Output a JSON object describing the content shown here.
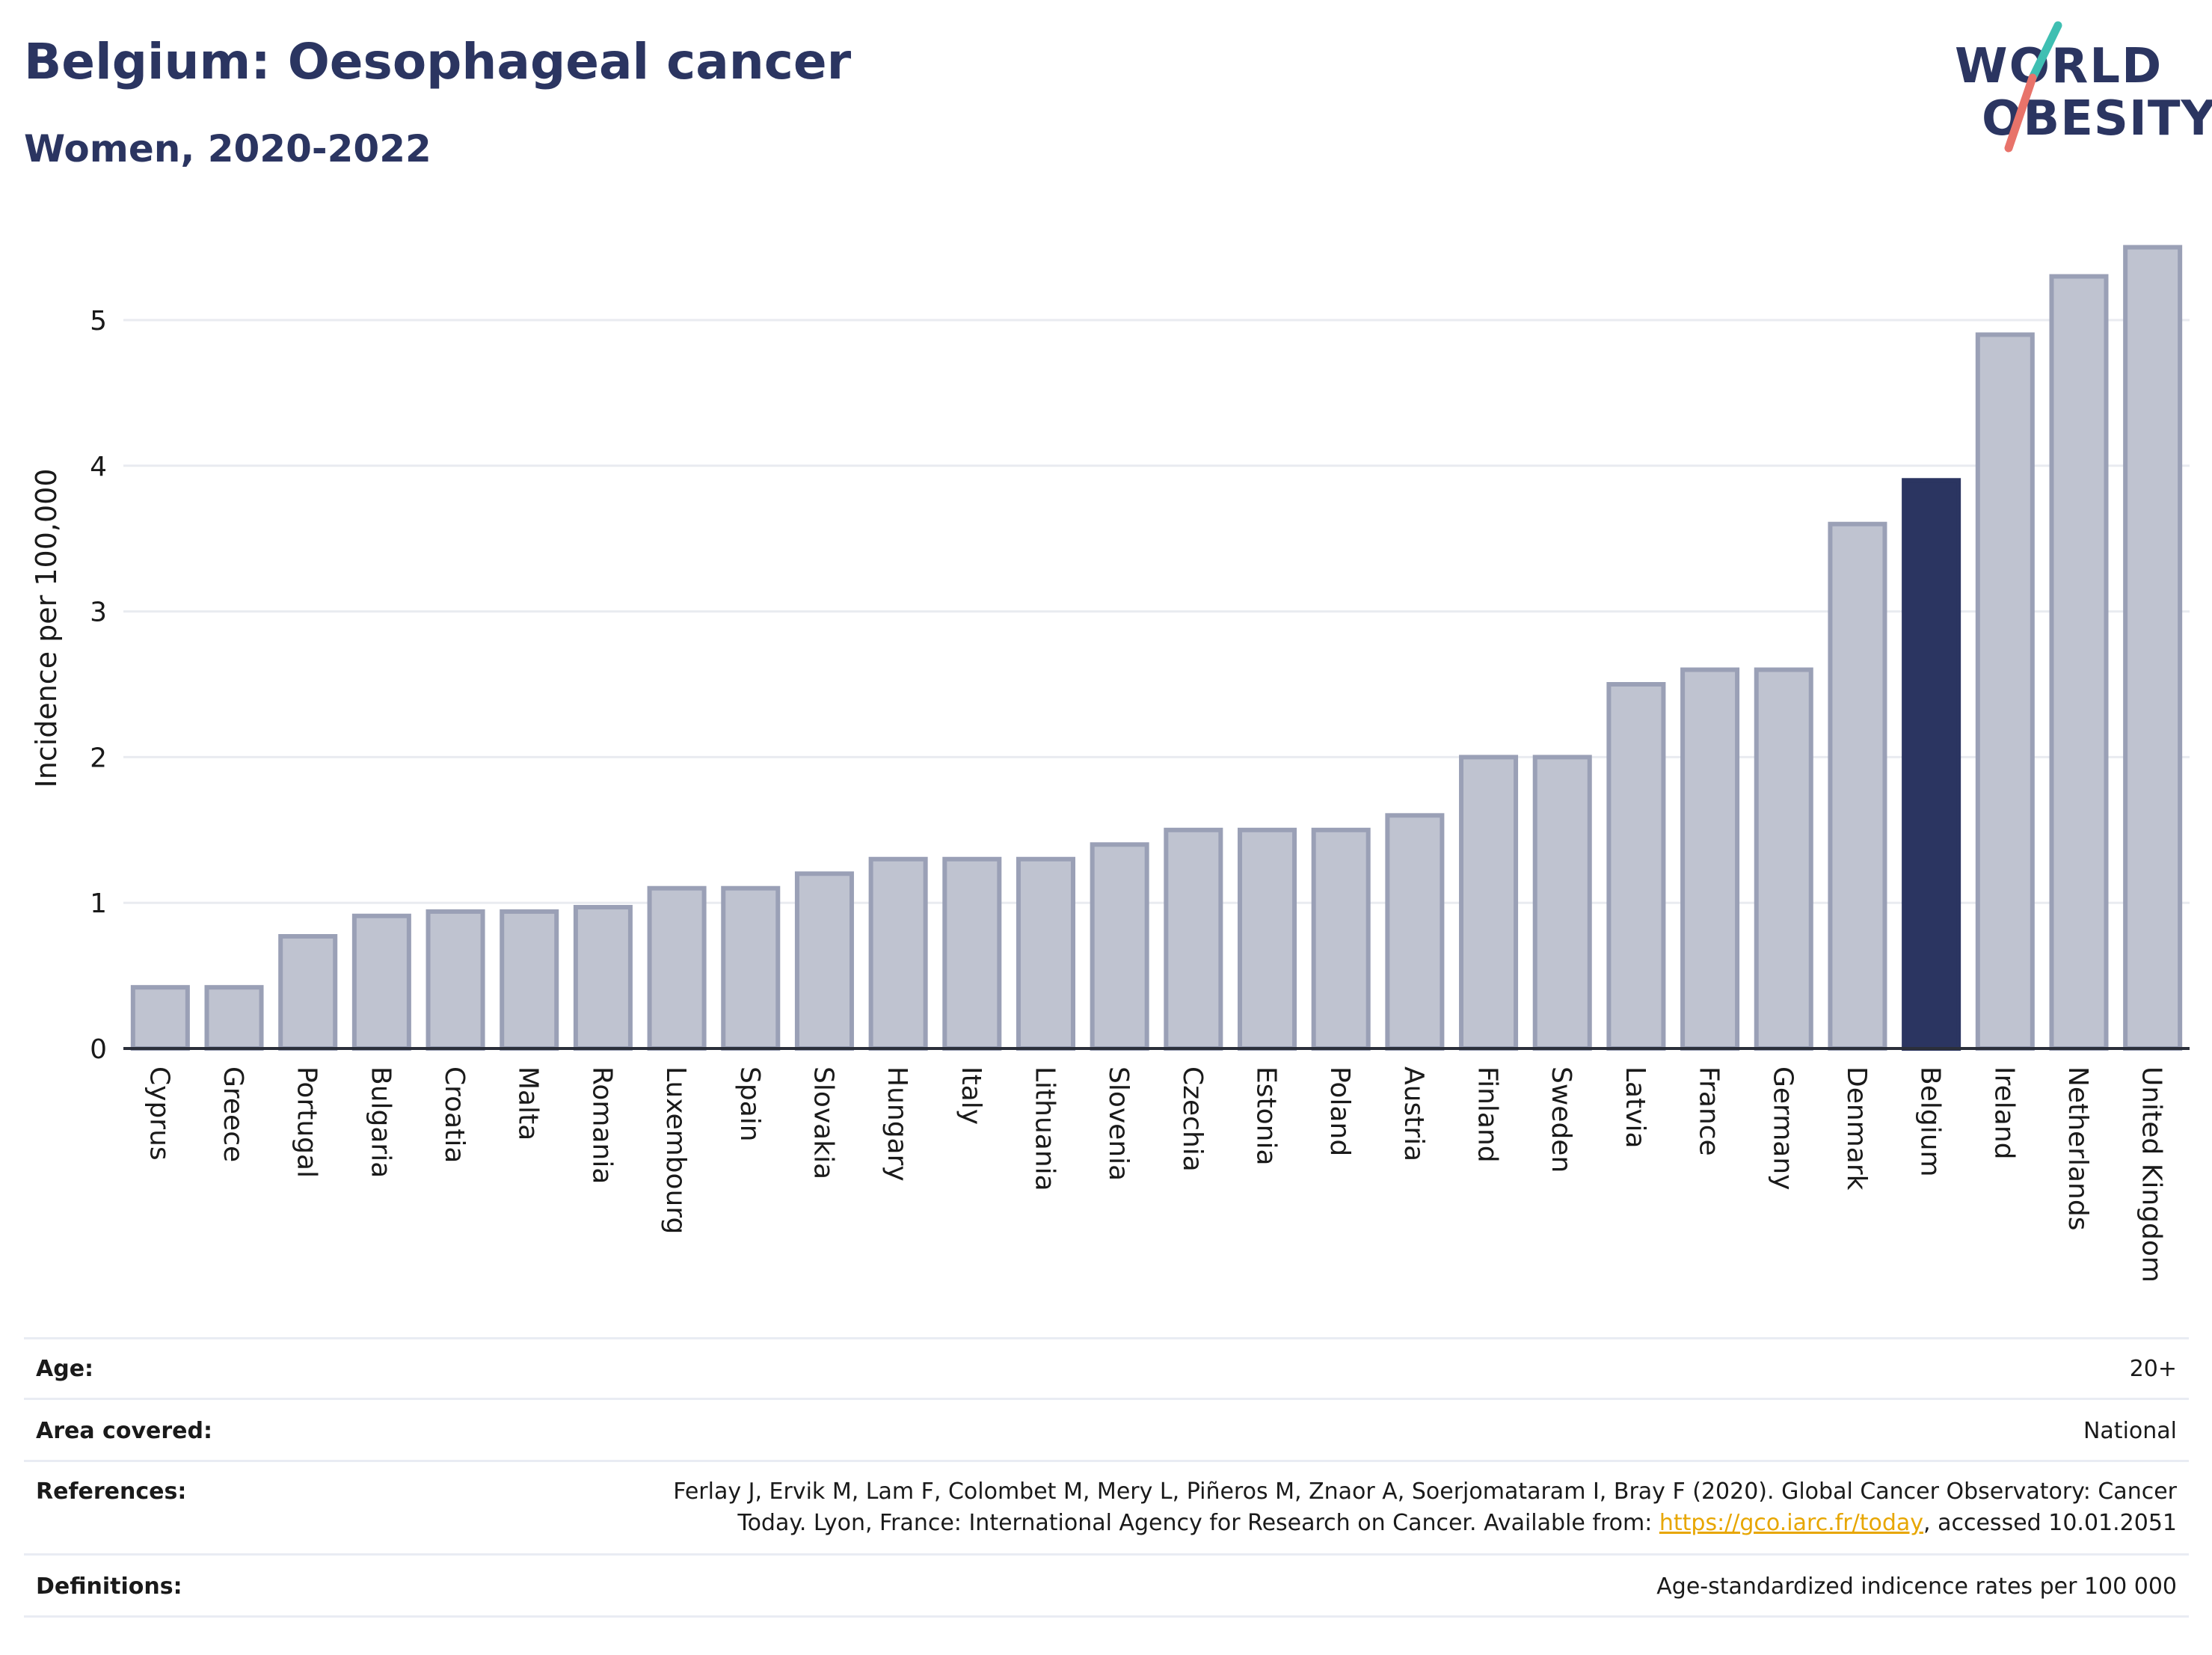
{
  "header": {
    "title": "Belgium: Oesophageal cancer",
    "subtitle": "Women, 2020-2022"
  },
  "logo": {
    "line1": "WORLD",
    "line2": "OBESITY",
    "accent_colors": [
      "#3fbfb2",
      "#e8736a"
    ]
  },
  "colors": {
    "highlight_bar": "#2b3561",
    "other_bar": "#bfc3d0",
    "other_bar_border": "#9aa0b6",
    "text_dark": "#2b3561",
    "link": "#e7a600"
  },
  "chart_data": {
    "type": "bar",
    "title": "Belgium: Oesophageal cancer",
    "subtitle": "Women, 2020-2022",
    "xlabel": "",
    "ylabel": "Incidence per 100,000",
    "ylim": [
      0,
      5.7
    ],
    "yticks": [
      0,
      1,
      2,
      3,
      4,
      5
    ],
    "grid": true,
    "highlight": "Belgium",
    "categories": [
      "Cyprus",
      "Greece",
      "Portugal",
      "Bulgaria",
      "Croatia",
      "Malta",
      "Romania",
      "Luxembourg",
      "Spain",
      "Slovakia",
      "Hungary",
      "Italy",
      "Lithuania",
      "Slovenia",
      "Czechia",
      "Estonia",
      "Poland",
      "Austria",
      "Finland",
      "Sweden",
      "Latvia",
      "France",
      "Germany",
      "Denmark",
      "Belgium",
      "Ireland",
      "Netherlands",
      "United Kingdom"
    ],
    "values": [
      0.42,
      0.42,
      0.77,
      0.91,
      0.94,
      0.94,
      0.97,
      1.1,
      1.1,
      1.2,
      1.3,
      1.3,
      1.3,
      1.4,
      1.5,
      1.5,
      1.5,
      1.6,
      2.0,
      2.0,
      2.5,
      2.6,
      2.6,
      3.6,
      3.9,
      4.9,
      5.3,
      5.5
    ]
  },
  "meta": {
    "age_label": "Age:",
    "age_value": "20+",
    "area_label": "Area covered:",
    "area_value": "National",
    "references_label": "References:",
    "references_line1": "Ferlay J, Ervik M, Lam F, Colombet M, Mery L, Piñeros M, Znaor A, Soerjomataram I, Bray F (2020). Global Cancer Observatory: Cancer",
    "references_line2_before": "Today. Lyon, France: International Agency for Research on Cancer. Available from: ",
    "references_link": "https://gco.iarc.fr/today",
    "references_line2_after": ", accessed 10.01.2051",
    "definitions_label": "Definitions:",
    "definitions_value": "Age-standardized indicence rates per 100 000"
  }
}
